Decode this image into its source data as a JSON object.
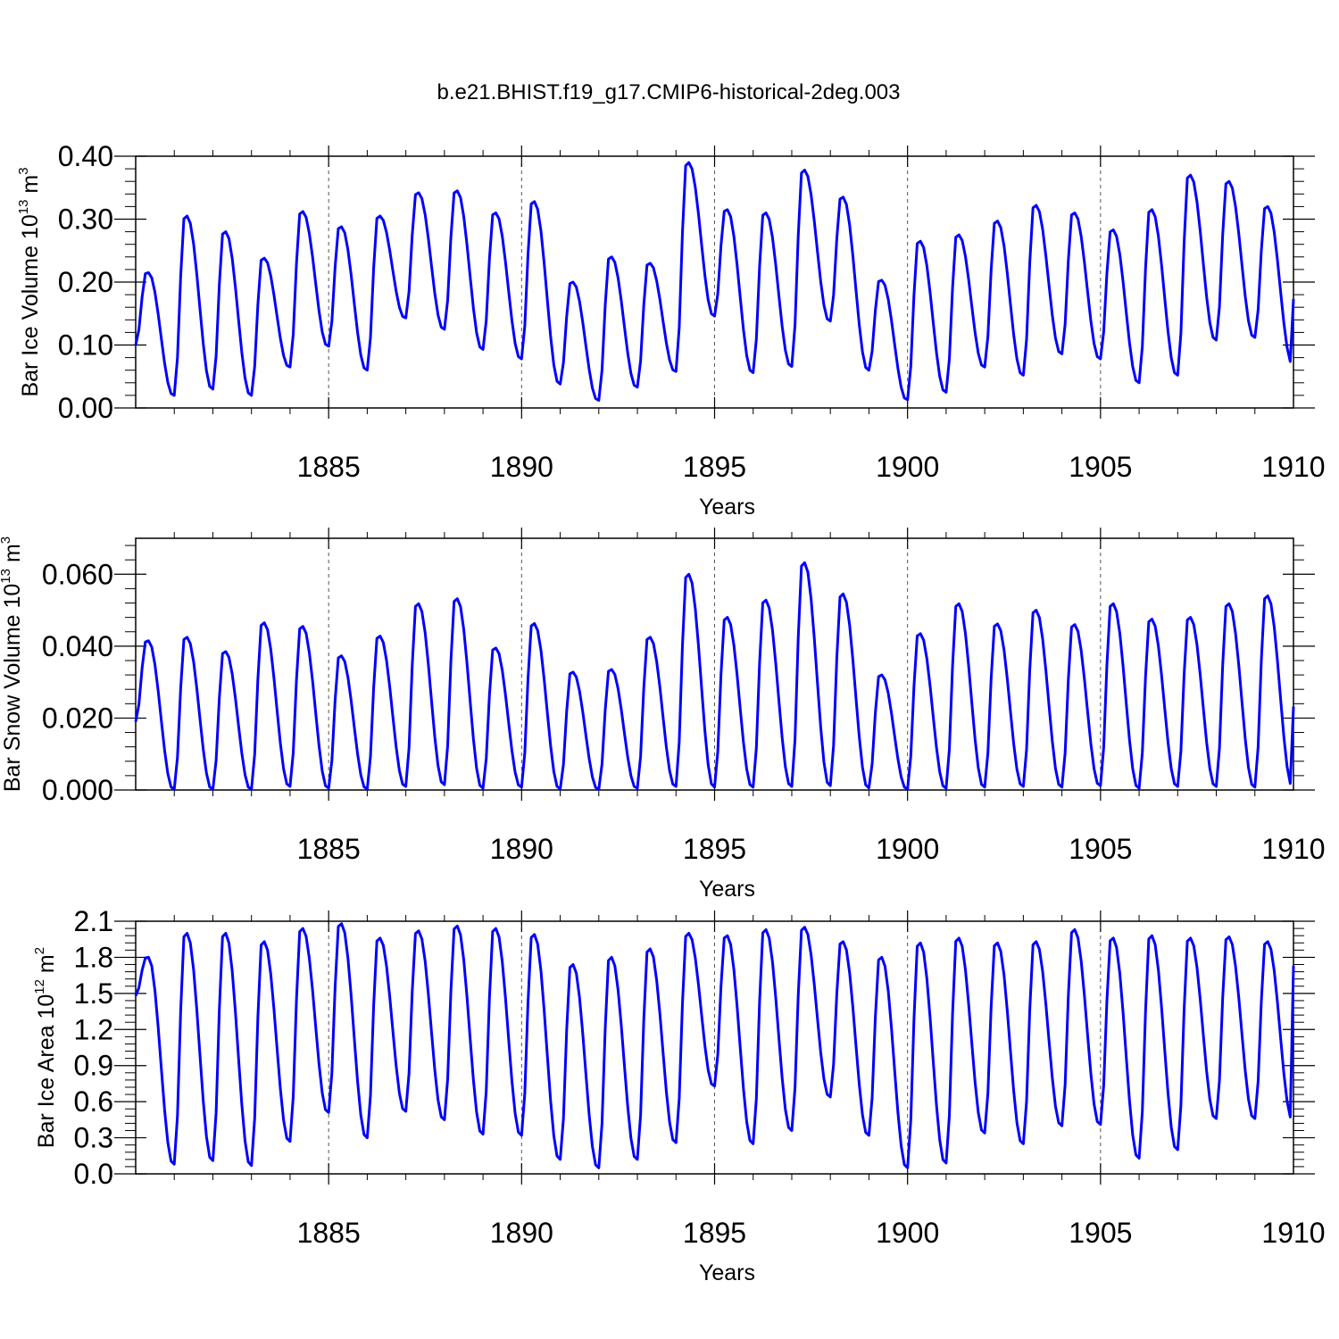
{
  "figure_title": "b.e21.BHIST.f19_g17.CMIP6-historical-2deg.003",
  "chart_data": [
    {
      "type": "line",
      "title": "",
      "ylabel": {
        "text": "Bar Ice Volume 10",
        "sup": "13",
        "unit": " m",
        "unit_sup": "3"
      },
      "xlabel": "Years",
      "xlim": [
        1880,
        1910
      ],
      "ylim": [
        0.0,
        0.4
      ],
      "yticks": [
        0.0,
        0.1,
        0.2,
        0.3,
        0.4
      ],
      "ytick_labels": [
        "0.00",
        "0.10",
        "0.20",
        "0.30",
        "0.40"
      ],
      "xticks": [
        1885,
        1890,
        1895,
        1900,
        1905,
        1910
      ],
      "xtick_labels": [
        "1885",
        "1890",
        "1895",
        "1900",
        "1905",
        "1910"
      ],
      "grid_x": [
        1885,
        1890,
        1895,
        1900,
        1905
      ],
      "series": [
        {
          "color": "#0000ff",
          "peaks": [
            0.215,
            0.305,
            0.28,
            0.238,
            0.312,
            0.288,
            0.305,
            0.342,
            0.345,
            0.31,
            0.328,
            0.2,
            0.24,
            0.23,
            0.39,
            0.315,
            0.31,
            0.378,
            0.335,
            0.203,
            0.265,
            0.275,
            0.297,
            0.322,
            0.31,
            0.283,
            0.315,
            0.37,
            0.36,
            0.32
          ],
          "troughs": [
            0.1,
            0.02,
            0.03,
            0.02,
            0.065,
            0.098,
            0.06,
            0.143,
            0.125,
            0.093,
            0.078,
            0.038,
            0.012,
            0.033,
            0.058,
            0.146,
            0.056,
            0.066,
            0.138,
            0.06,
            0.013,
            0.025,
            0.065,
            0.052,
            0.086,
            0.078,
            0.04,
            0.052,
            0.108,
            0.112,
            0.07
          ],
          "end": 0.173
        }
      ]
    },
    {
      "type": "line",
      "title": "",
      "ylabel": {
        "text": "Bar Snow Volume 10",
        "sup": "13",
        "unit": " m",
        "unit_sup": "3"
      },
      "xlabel": "Years",
      "xlim": [
        1880,
        1910
      ],
      "ylim": [
        0.0,
        0.07
      ],
      "yticks": [
        0.0,
        0.02,
        0.04,
        0.06
      ],
      "ytick_labels": [
        "0.000",
        "0.020",
        "0.040",
        "0.060"
      ],
      "xticks": [
        1885,
        1890,
        1895,
        1900,
        1905,
        1910
      ],
      "xtick_labels": [
        "1885",
        "1890",
        "1895",
        "1900",
        "1905",
        "1910"
      ],
      "grid_x": [
        1885,
        1890,
        1895,
        1900,
        1905
      ],
      "series": [
        {
          "color": "#0000ff",
          "peaks": [
            0.0415,
            0.0425,
            0.0385,
            0.0465,
            0.0455,
            0.0373,
            0.0428,
            0.0518,
            0.0532,
            0.0395,
            0.0463,
            0.0328,
            0.0335,
            0.0425,
            0.06,
            0.048,
            0.0528,
            0.0632,
            0.0545,
            0.032,
            0.0435,
            0.0518,
            0.0462,
            0.05,
            0.046,
            0.0518,
            0.0475,
            0.048,
            0.0518,
            0.054
          ],
          "troughs": [
            0.019,
            0.0002,
            0.0002,
            0.0002,
            0.001,
            0.0005,
            0.0003,
            0.001,
            0.0015,
            0.0005,
            0.0008,
            0.0003,
            0.0002,
            0.0005,
            0.001,
            0.0008,
            0.0008,
            0.001,
            0.0012,
            0.0006,
            0.0003,
            0.0005,
            0.0008,
            0.001,
            0.0008,
            0.0012,
            0.0005,
            0.001,
            0.001,
            0.0008,
            0.001
          ],
          "end": 0.0232
        }
      ]
    },
    {
      "type": "line",
      "title": "",
      "ylabel": {
        "text": "Bar Ice Area 10",
        "sup": "12",
        "unit": " m",
        "unit_sup": "2"
      },
      "xlabel": "Years",
      "xlim": [
        1880,
        1910
      ],
      "ylim": [
        0.0,
        2.1
      ],
      "yticks": [
        0.0,
        0.3,
        0.6,
        0.9,
        1.2,
        1.5,
        1.8,
        2.1
      ],
      "ytick_labels": [
        "0.0",
        "0.3",
        "0.6",
        "0.9",
        "1.2",
        "1.5",
        "1.8",
        "2.1"
      ],
      "xticks": [
        1885,
        1890,
        1895,
        1900,
        1905,
        1910
      ],
      "xtick_labels": [
        "1885",
        "1890",
        "1895",
        "1900",
        "1905",
        "1910"
      ],
      "grid_x": [
        1885,
        1890,
        1895,
        1900,
        1905
      ],
      "series": [
        {
          "color": "#0000ff",
          "peaks": [
            1.8,
            2.0,
            2.0,
            1.93,
            2.04,
            2.08,
            1.96,
            2.02,
            2.06,
            2.04,
            1.99,
            1.74,
            1.8,
            1.87,
            2.0,
            1.98,
            2.03,
            2.05,
            1.93,
            1.8,
            1.92,
            1.96,
            1.92,
            1.93,
            2.03,
            1.96,
            1.98,
            1.96,
            1.97,
            1.93
          ],
          "troughs": [
            1.48,
            0.08,
            0.11,
            0.07,
            0.27,
            0.51,
            0.3,
            0.52,
            0.45,
            0.33,
            0.32,
            0.12,
            0.05,
            0.12,
            0.26,
            0.73,
            0.25,
            0.36,
            0.64,
            0.32,
            0.05,
            0.09,
            0.34,
            0.25,
            0.4,
            0.41,
            0.13,
            0.2,
            0.46,
            0.46,
            0.45
          ],
          "end": 1.73
        }
      ]
    }
  ]
}
